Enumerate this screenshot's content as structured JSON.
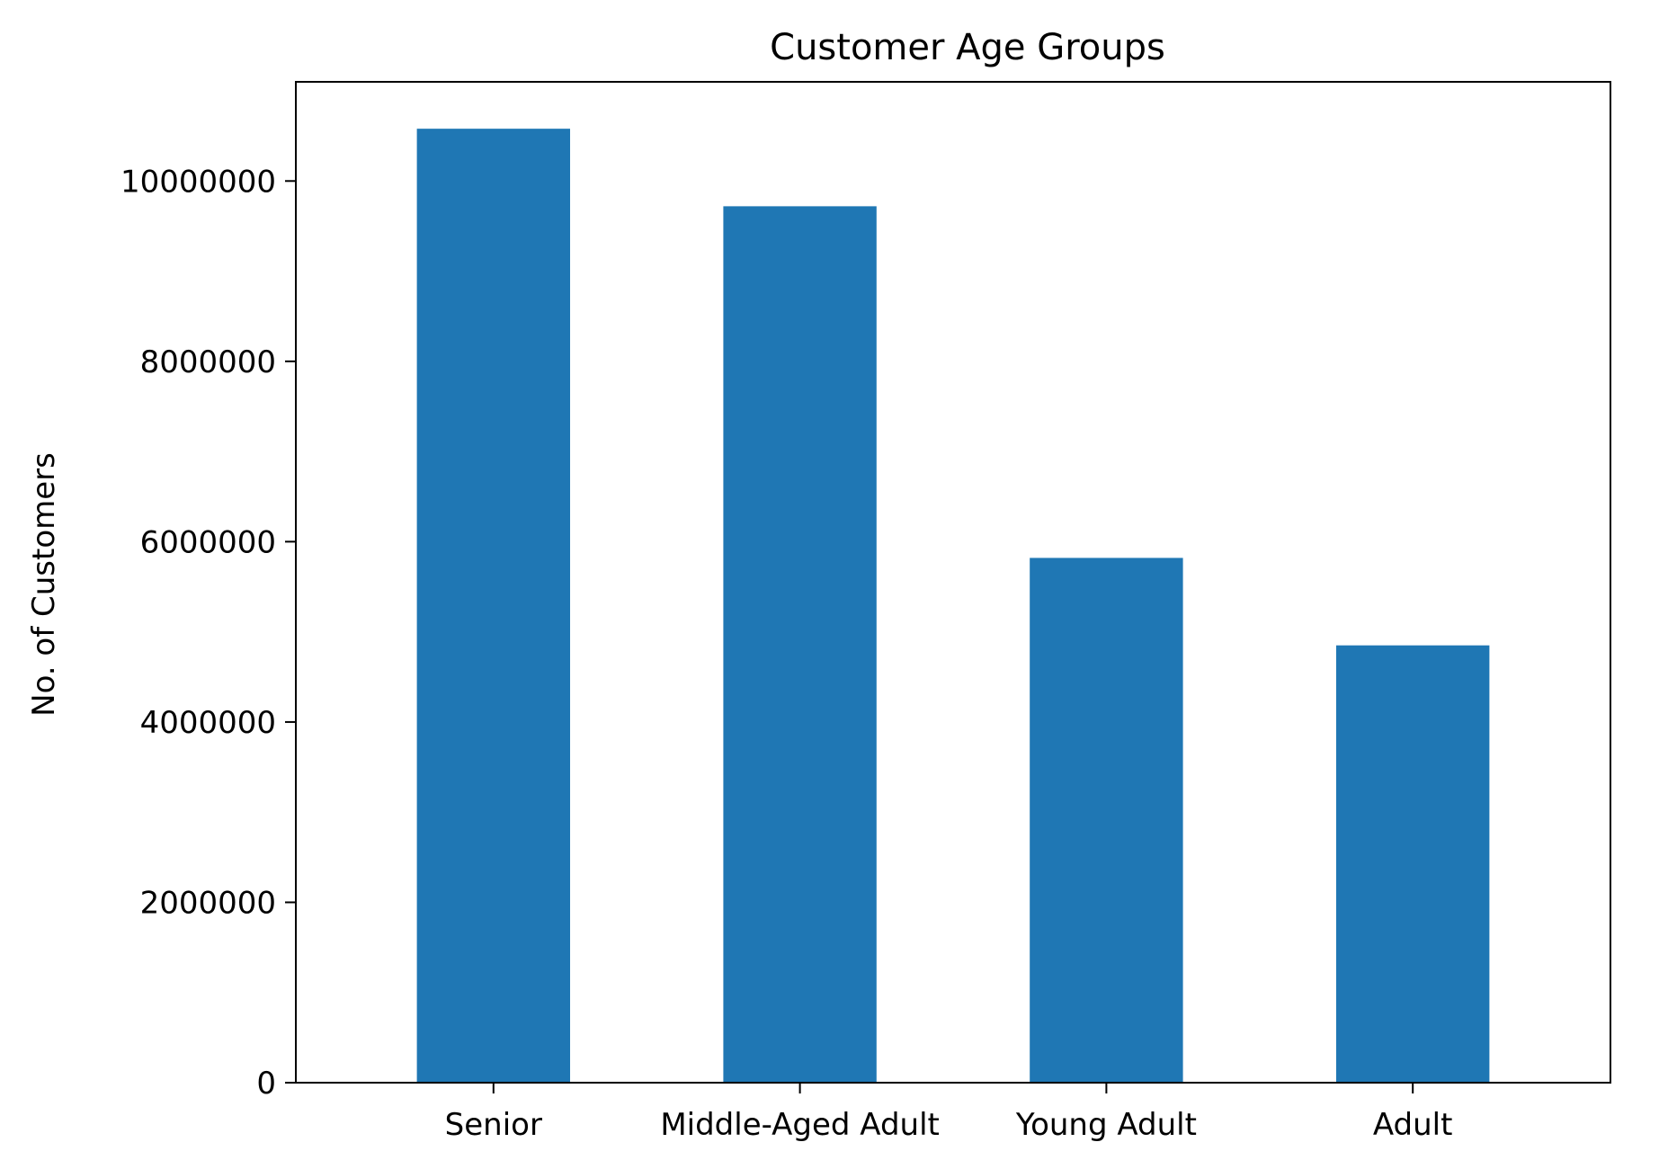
{
  "chart_data": {
    "type": "bar",
    "title": "Customer Age Groups",
    "xlabel": "",
    "ylabel": "No. of Customers",
    "categories": [
      "Senior",
      "Middle-Aged Adult",
      "Young Adult",
      "Adult"
    ],
    "values": [
      10580000,
      9720000,
      5820000,
      4850000
    ],
    "ylim": [
      0,
      11100000
    ],
    "yticks": [
      0,
      2000000,
      4000000,
      6000000,
      8000000,
      10000000
    ],
    "ytick_labels": [
      "0",
      "2000000",
      "4000000",
      "6000000",
      "8000000",
      "10000000"
    ],
    "bar_color": "#1f77b4",
    "grid": false,
    "legend": "none"
  }
}
